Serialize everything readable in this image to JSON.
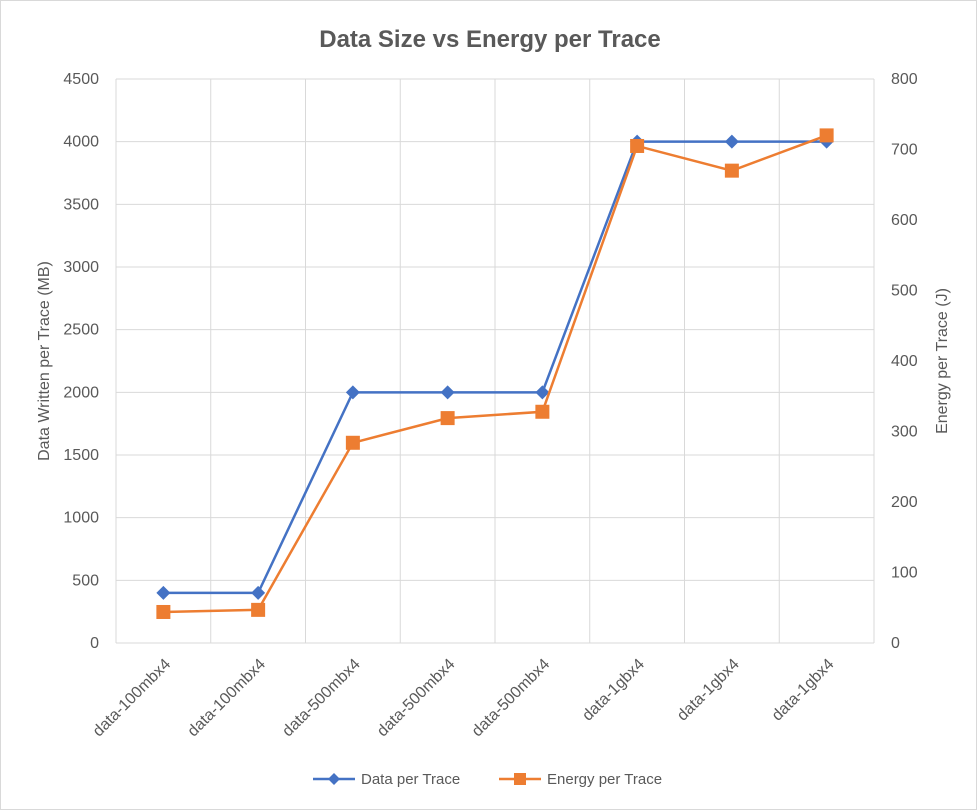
{
  "chart_data": {
    "type": "line",
    "title": "Data Size vs Energy per Trace",
    "categories": [
      "data-100mbx4",
      "data-100mbx4",
      "data-500mbx4",
      "data-500mbx4",
      "data-500mbx4",
      "data-1gbx4",
      "data-1gbx4",
      "data-1gbx4"
    ],
    "ylabel": "Data Written per Trace (MB)",
    "ylabel_right": "Energy per Trace (J)",
    "ylim": [
      0,
      4500
    ],
    "ylim_right": [
      0,
      800
    ],
    "yticks": [
      "0",
      "500",
      "1000",
      "1500",
      "2000",
      "2500",
      "3000",
      "3500",
      "4000",
      "4500"
    ],
    "yticks_right": [
      "0",
      "100",
      "200",
      "300",
      "400",
      "500",
      "600",
      "700",
      "800"
    ],
    "grid": true,
    "legend_position": "bottom",
    "series": [
      {
        "name": "Data per Trace",
        "axis": "left",
        "color": "#4472c4",
        "marker": "diamond",
        "values": [
          400,
          400,
          2000,
          2000,
          2000,
          4000,
          4000,
          4000
        ]
      },
      {
        "name": "Energy per Trace",
        "axis": "right",
        "color": "#ed7d31",
        "marker": "square",
        "values": [
          44,
          47,
          284,
          319,
          328,
          705,
          670,
          720
        ]
      }
    ]
  }
}
